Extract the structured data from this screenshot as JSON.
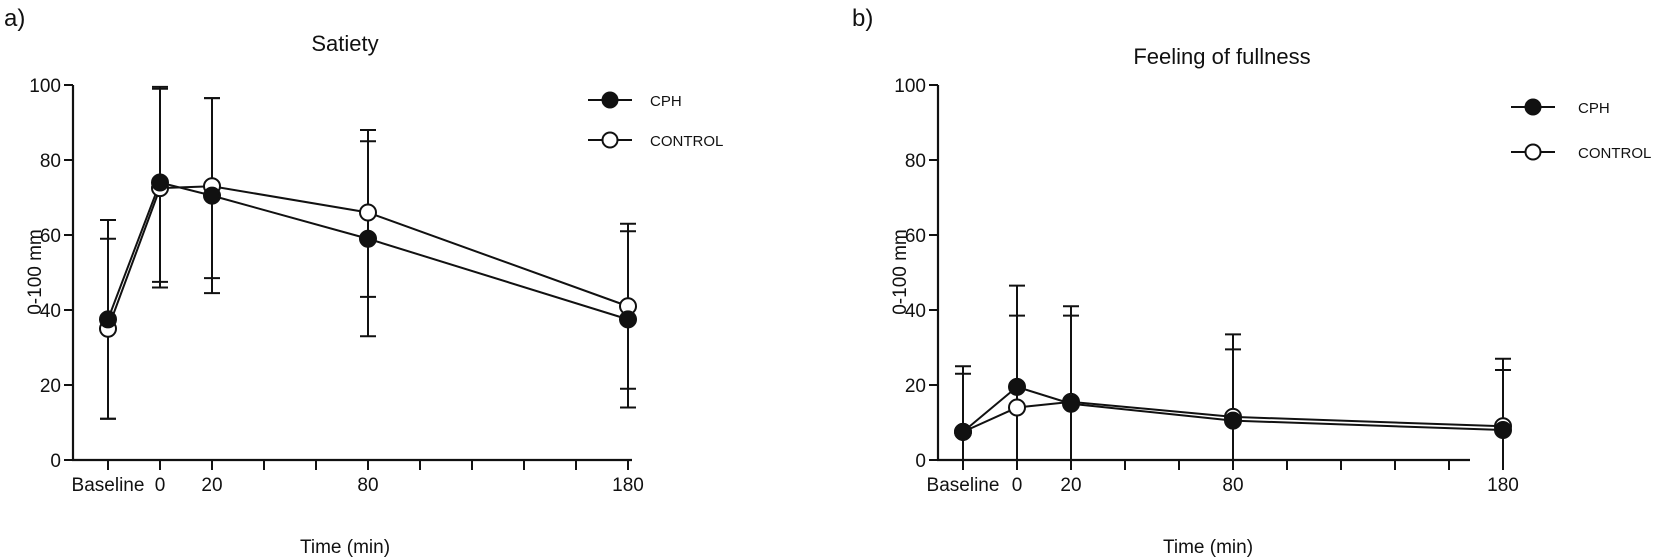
{
  "chart_data": [
    {
      "type": "line",
      "panel_label": "a)",
      "title": "Satiety",
      "xlabel": "Time (min)",
      "ylabel": "0-100 mm",
      "ylim": [
        0,
        100
      ],
      "yticks": [
        "0",
        "20",
        "40",
        "60",
        "80",
        "100"
      ],
      "ytick_values": [
        0,
        20,
        40,
        60,
        80,
        100
      ],
      "x_categories": [
        "Baseline",
        "0",
        "20",
        "80",
        "180"
      ],
      "x_positions": [
        -20,
        0,
        20,
        80,
        180
      ],
      "x_minor_ticks": [
        40,
        60,
        100,
        120,
        140,
        160
      ],
      "xlim": [
        -30,
        180
      ],
      "legend_position": "top-right",
      "series": [
        {
          "name": "CPH",
          "marker": "filled-circle",
          "values": [
            37.5,
            74,
            70.5,
            59,
            37.5
          ],
          "err_low": [
            11,
            47.5,
            44.5,
            33,
            14
          ],
          "err_high": [
            64,
            99,
            96.5,
            85,
            61
          ]
        },
        {
          "name": "CONTROL",
          "marker": "open-circle",
          "values": [
            35,
            72.5,
            73,
            66,
            41
          ],
          "err_low": [
            11,
            46,
            48.5,
            43.5,
            19
          ],
          "err_high": [
            59,
            99.5,
            96.5,
            88,
            63
          ]
        }
      ]
    },
    {
      "type": "line",
      "panel_label": "b)",
      "title": "Feeling of fullness",
      "xlabel": "Time (min)",
      "ylabel": "0-100 mm",
      "ylim": [
        0,
        100
      ],
      "yticks": [
        "0",
        "20",
        "40",
        "60",
        "80",
        "100"
      ],
      "ytick_values": [
        0,
        20,
        40,
        60,
        80,
        100
      ],
      "x_categories": [
        "Baseline",
        "0",
        "20",
        "80",
        "180"
      ],
      "x_positions": [
        -20,
        0,
        20,
        80,
        180
      ],
      "x_minor_ticks": [
        40,
        60,
        100,
        120,
        140,
        160
      ],
      "xlim": [
        -30,
        180
      ],
      "legend_position": "top-right",
      "series": [
        {
          "name": "CPH",
          "marker": "filled-circle",
          "values": [
            7.5,
            19.5,
            15,
            10.5,
            8
          ],
          "err_low": [
            0,
            0,
            0,
            0,
            0
          ],
          "err_high": [
            23,
            46.5,
            41,
            29.5,
            24
          ]
        },
        {
          "name": "CONTROL",
          "marker": "open-circle",
          "values": [
            7.5,
            14,
            15.5,
            11.5,
            9
          ],
          "err_low": [
            0,
            0,
            0,
            0,
            0
          ],
          "err_high": [
            25,
            38.5,
            38.5,
            33.5,
            27
          ]
        }
      ]
    }
  ],
  "colors": {
    "line": "#111111",
    "background": "#ffffff"
  }
}
